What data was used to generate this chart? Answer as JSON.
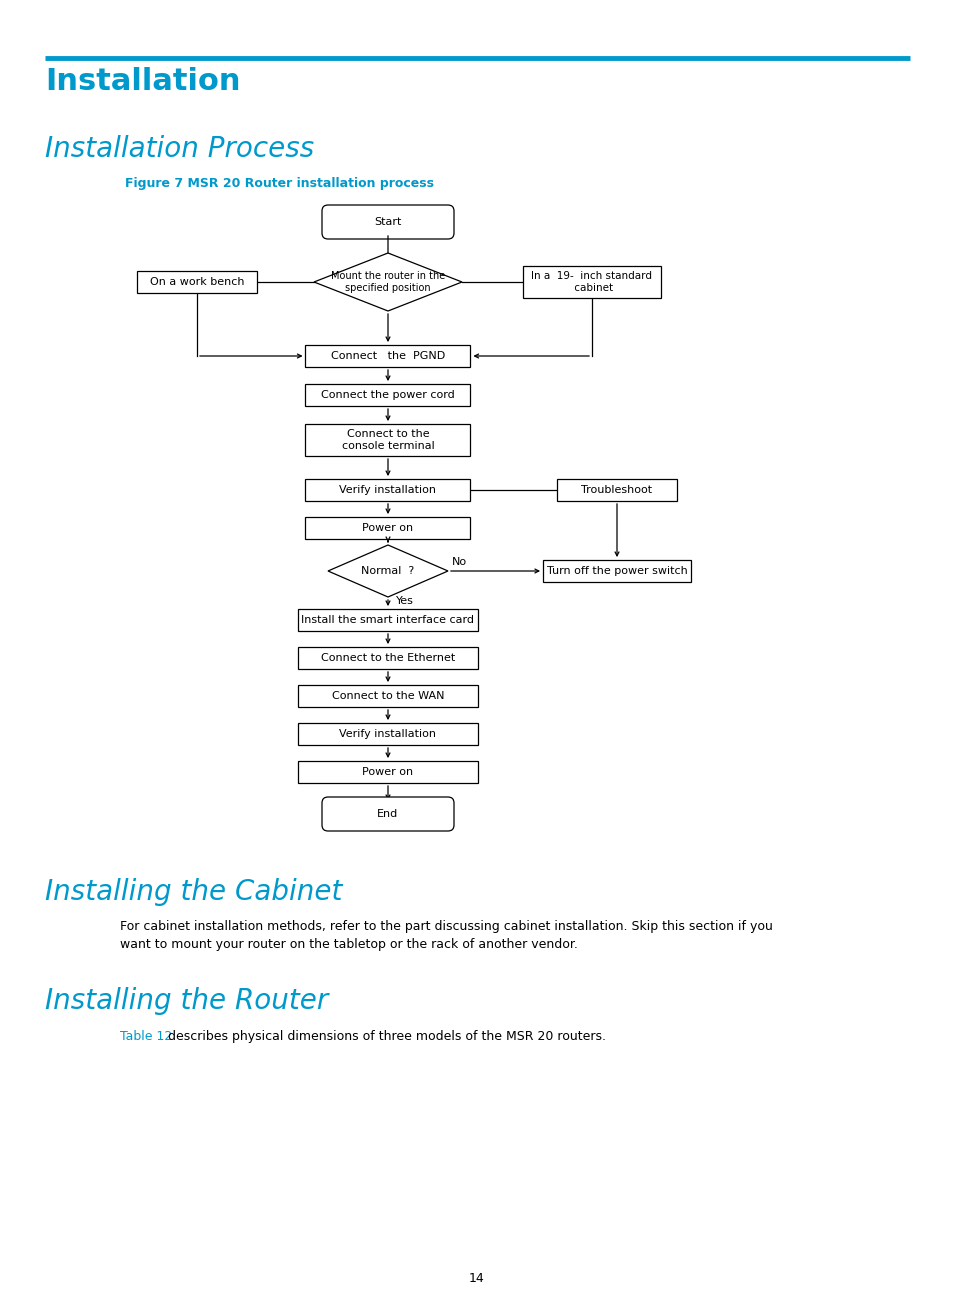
{
  "page_title": "Installation",
  "section1_title": "Installation Process",
  "figure_caption": "Figure 7 MSR 20 Router installation process",
  "section2_title": "Installing the Cabinet",
  "section2_body_line1": "For cabinet installation methods, refer to the part discussing cabinet installation. Skip this section if you",
  "section2_body_line2": "want to mount your router on the tabletop or the rack of another vendor.",
  "section3_title": "Installing the Router",
  "section3_body_link": "Table 12",
  "section3_body_text": " describes physical dimensions of three models of the MSR 20 routers.",
  "page_number": "14",
  "cyan": "#0099cc",
  "black": "#000000",
  "white": "#ffffff"
}
